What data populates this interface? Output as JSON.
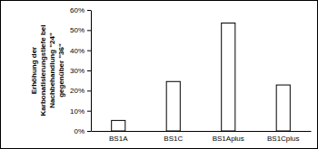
{
  "chart_data": {
    "type": "bar",
    "y_label": "Erhöhung der Karbonatisierungstiefe bei Nachbehandlung \"24\" gegenüber \"36\"",
    "categories": [
      "BS1A",
      "BS1C",
      "BS1Aplus",
      "BS1Cplus"
    ],
    "values": [
      5.2,
      24.5,
      53.5,
      22.8
    ],
    "color": "#ffffff",
    "ylim": [
      0,
      60
    ],
    "yticks": [
      {
        "value": 0,
        "label": "0%"
      },
      {
        "value": 10,
        "label": "10%"
      },
      {
        "value": 20,
        "label": "20%"
      },
      {
        "value": 30,
        "label": "30%"
      },
      {
        "value": 40,
        "label": "40%"
      },
      {
        "value": 50,
        "label": "50%"
      },
      {
        "value": 60,
        "label": "60%"
      }
    ],
    "grid": false
  }
}
